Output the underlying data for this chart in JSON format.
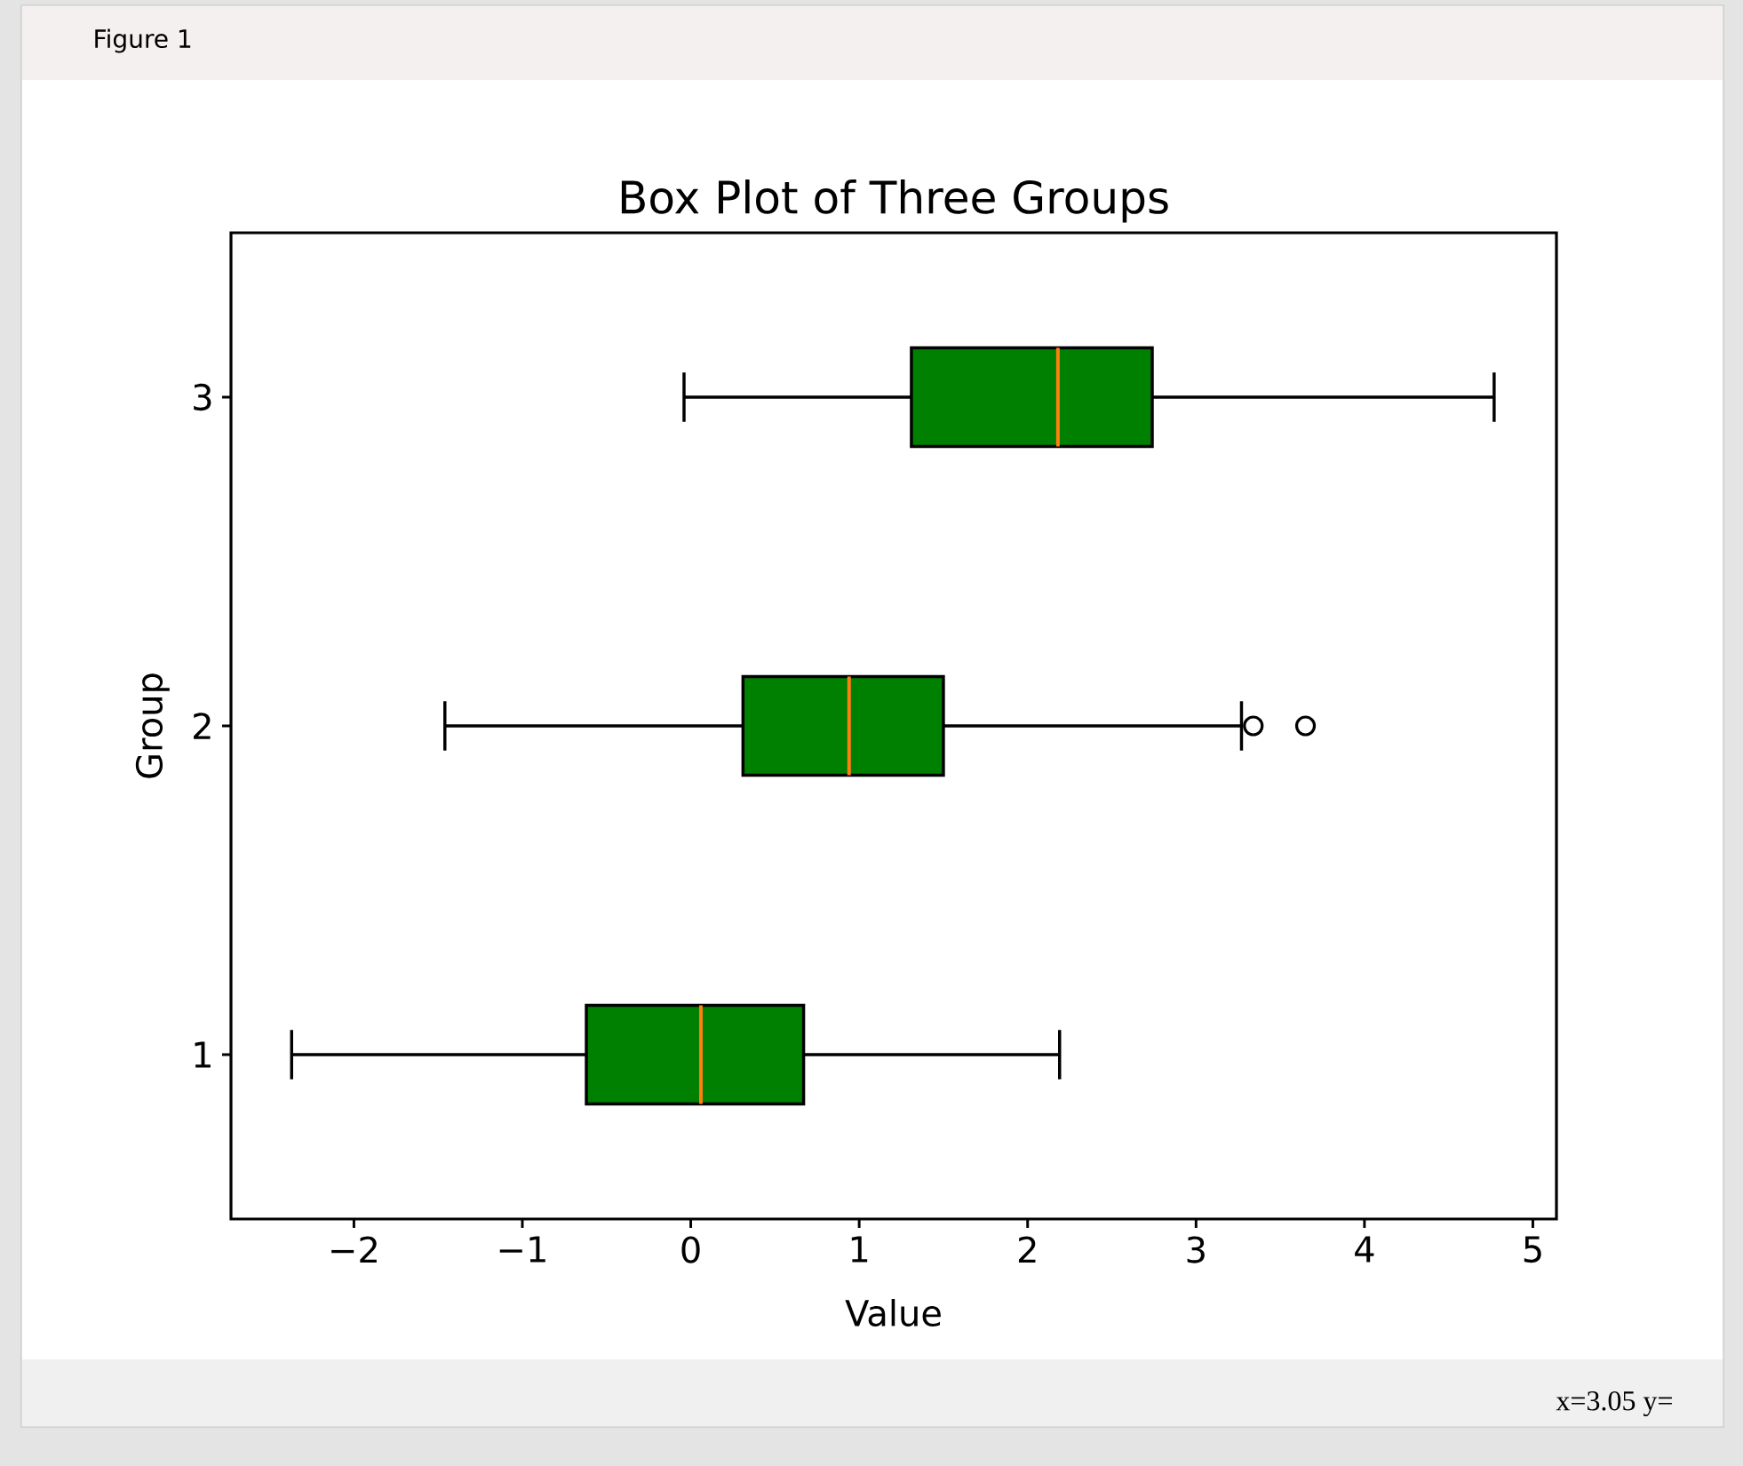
{
  "chart_data": {
    "type": "box",
    "title": "Box Plot of Three Groups",
    "xlabel": "Value",
    "ylabel": "Group",
    "orientation": "horizontal",
    "categories": [
      "3",
      "2",
      "1"
    ],
    "color": "#008000",
    "boxes": [
      {
        "low": -0.04,
        "q1": 1.31,
        "median": 2.18,
        "q3": 2.74,
        "high": 4.77
      },
      {
        "low": -1.46,
        "q1": 0.31,
        "median": 0.94,
        "q3": 1.5,
        "high": 3.27,
        "outliers": [
          3.34,
          3.65
        ]
      },
      {
        "low": -2.37,
        "q1": -0.62,
        "median": 0.06,
        "q3": 0.67,
        "high": 2.19
      }
    ],
    "xlim": [
      -2.73,
      5.14
    ],
    "xticks": [
      {
        "value": -2,
        "label": "−2"
      },
      {
        "value": -1,
        "label": "−1"
      },
      0,
      1,
      2,
      3,
      4,
      5
    ],
    "annotations": [
      "Figure 1",
      "x=3.05 y="
    ]
  }
}
